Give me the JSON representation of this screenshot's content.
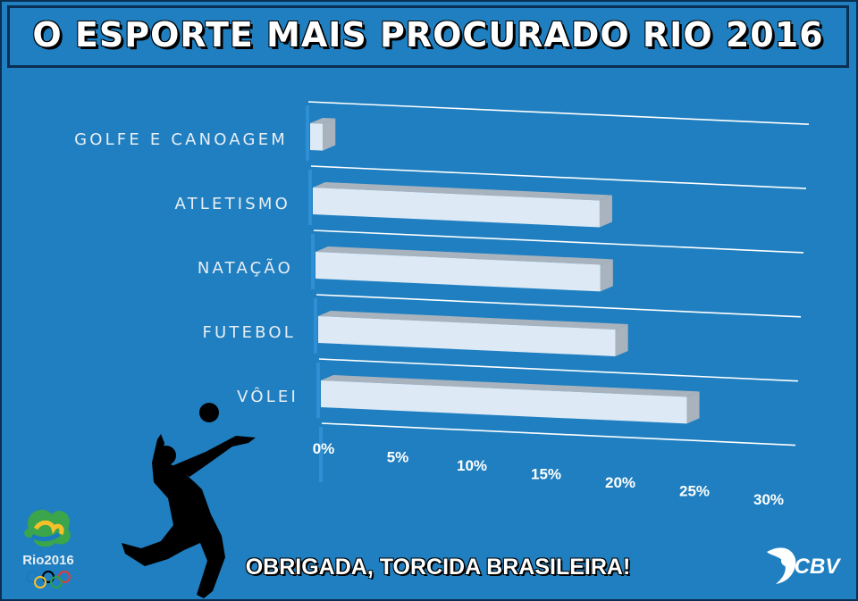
{
  "title": "O ESPORTE MAIS PROCURADO RIO 2016",
  "footer": "OBRIGADA, TORCIDA BRASILEIRA!",
  "logos": {
    "rio": "Rio2016",
    "cbv": "CBV"
  },
  "chart_data": {
    "type": "bar",
    "orientation": "horizontal",
    "categories": [
      "GOLFE E CANOAGEM",
      "ATLETISMO",
      "NATAÇÃO",
      "FUTEBOL",
      "VÔLEI"
    ],
    "values": [
      1,
      20,
      20,
      21,
      26
    ],
    "xlim": [
      0,
      30
    ],
    "x_ticks": [
      "0%",
      "5%",
      "10%",
      "15%",
      "20%",
      "25%",
      "30%"
    ],
    "grid": true,
    "colors": {
      "bar_face": "#dde9f5",
      "bar_side": "#a8b3bd",
      "background": "#1f7fc0",
      "grid": "#ffffff"
    }
  }
}
